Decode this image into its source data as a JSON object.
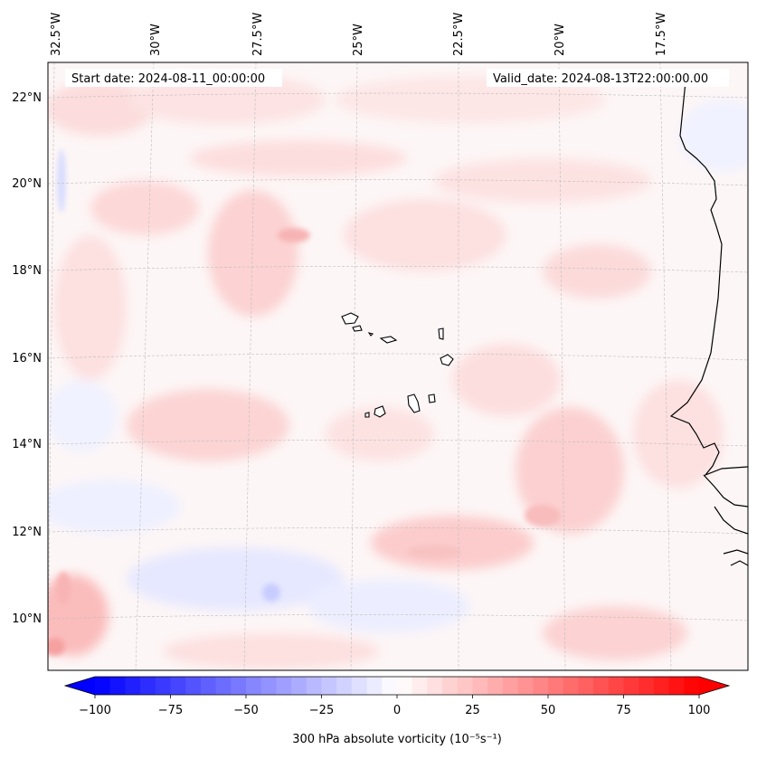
{
  "map": {
    "start_label": "Start date: 2024-08-11_00:00:00",
    "valid_label": "Valid_date: 2024-08-13T22:00:00.00",
    "lon_labels": [
      "32.5°W",
      "30°W",
      "27.5°W",
      "25°W",
      "22.5°W",
      "20°W",
      "17.5°W"
    ],
    "lat_labels": [
      "22°N",
      "20°N",
      "18°N",
      "16°N",
      "14°N",
      "12°N",
      "10°N"
    ],
    "gridlines": true,
    "coastline_color": "#000000"
  },
  "colorbar": {
    "label": "300 hPa absolute vorticity (10⁻⁵s⁻¹)",
    "ticks": [
      "−100",
      "−75",
      "−50",
      "−25",
      "0",
      "25",
      "50",
      "75",
      "100"
    ],
    "min": -100,
    "max": 100,
    "extend": "both",
    "cmap": "bwr",
    "low_color": "#0000ff",
    "mid_color": "#ffffff",
    "high_color": "#ff0000"
  }
}
